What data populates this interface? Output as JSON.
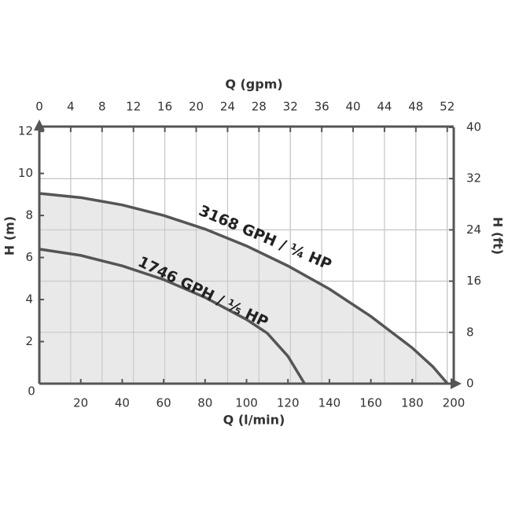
{
  "chart_data": {
    "type": "line",
    "x_label": "Q (l/min)",
    "x2_label": "Q (gpm)",
    "y_label": "H (m)",
    "y2_label": "H (ft)",
    "xlim": [
      0,
      200
    ],
    "xticks": [
      0,
      20,
      40,
      60,
      80,
      100,
      120,
      140,
      160,
      180,
      200
    ],
    "x2lim": [
      0,
      52.83
    ],
    "x2ticks": [
      0,
      4,
      8,
      12,
      16,
      20,
      24,
      28,
      32,
      36,
      40,
      44,
      48,
      52
    ],
    "ylim": [
      0,
      12.19
    ],
    "yticks": [
      2,
      4,
      6,
      8,
      10,
      12
    ],
    "y2lim": [
      0,
      40
    ],
    "y2ticks": [
      0,
      8,
      16,
      24,
      32,
      40
    ],
    "grid": true,
    "fill_color": "#e9e9e9",
    "series": [
      {
        "name": "3168 GPH / ¼ HP",
        "color": "#555555",
        "x": [
          0,
          20,
          40,
          60,
          80,
          100,
          120,
          140,
          160,
          180,
          190,
          197
        ],
        "values": [
          9.05,
          8.85,
          8.5,
          8.0,
          7.35,
          6.55,
          5.6,
          4.5,
          3.2,
          1.7,
          0.8,
          0
        ]
      },
      {
        "name": "1746 GPH / ⅕ HP",
        "color": "#555555",
        "x": [
          0,
          20,
          40,
          60,
          80,
          100,
          110,
          120,
          128
        ],
        "values": [
          6.4,
          6.1,
          5.6,
          4.95,
          4.1,
          3.05,
          2.4,
          1.3,
          0
        ]
      }
    ]
  }
}
